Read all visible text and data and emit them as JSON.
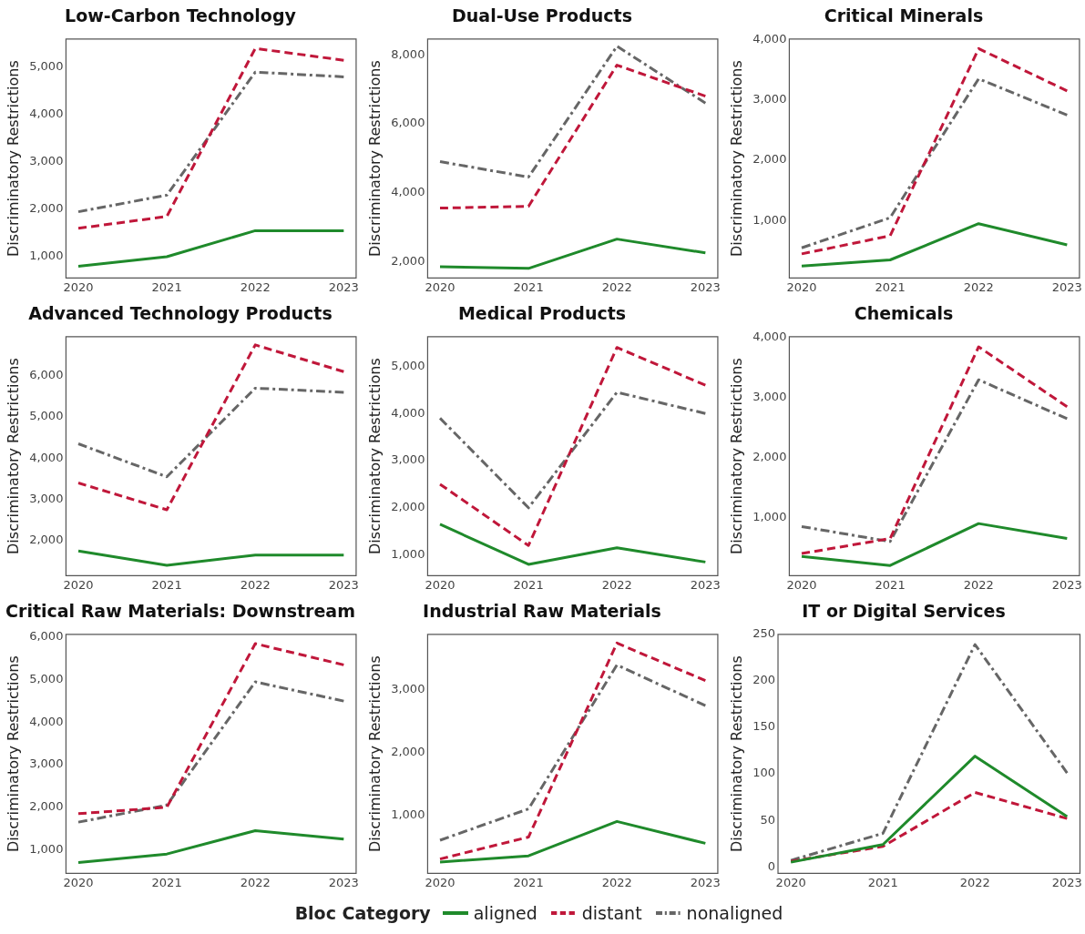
{
  "chart_data": [
    {
      "type": "line",
      "title": "Low-Carbon Technology",
      "ylabel": "Discriminatory Restrictions",
      "categories": [
        "2020",
        "2021",
        "2022",
        "2023"
      ],
      "ylim": [
        550,
        5600
      ],
      "yticks": [
        {
          "value": 1000,
          "label": "1,000"
        },
        {
          "value": 2000,
          "label": "2,000"
        },
        {
          "value": 3000,
          "label": "3,000"
        },
        {
          "value": 4000,
          "label": "4,000"
        },
        {
          "value": 5000,
          "label": "5,000"
        }
      ],
      "legend": "bottom",
      "legend_title": "Bloc Category",
      "series": [
        {
          "name": "aligned",
          "color": "#1f8a2b",
          "line_style": "solid",
          "values": [
            800,
            1000,
            1550,
            1550
          ]
        },
        {
          "name": "distant",
          "color": "#c0173a",
          "line_style": "dashed",
          "values": [
            1600,
            1850,
            5400,
            5150
          ]
        },
        {
          "name": "nonaligned",
          "color": "#666666",
          "line_style": "dashdot",
          "values": [
            1950,
            2300,
            4900,
            4800
          ]
        }
      ]
    },
    {
      "type": "line",
      "title": "Dual-Use Products",
      "ylabel": "Discriminatory Restrictions",
      "categories": [
        "2020",
        "2021",
        "2022",
        "2023"
      ],
      "ylim": [
        1520,
        8460
      ],
      "yticks": [
        {
          "value": 2000,
          "label": "2,000"
        },
        {
          "value": 4000,
          "label": "4,000"
        },
        {
          "value": 6000,
          "label": "6,000"
        },
        {
          "value": 8000,
          "label": "8,000"
        }
      ],
      "series": [
        {
          "color": "#1f8a2b",
          "line_style": "solid",
          "values": [
            1850,
            1800,
            2650,
            2250
          ]
        },
        {
          "color": "#c0173a",
          "line_style": "dashed",
          "values": [
            3550,
            3600,
            7700,
            6800
          ]
        },
        {
          "color": "#666666",
          "line_style": "dashdot",
          "values": [
            4900,
            4450,
            8250,
            6600
          ]
        }
      ]
    },
    {
      "type": "line",
      "title": "Critical Minerals",
      "ylabel": "Discriminatory Restrictions",
      "categories": [
        "2020",
        "2021",
        "2022",
        "2023"
      ],
      "ylim": [
        50,
        4010
      ],
      "yticks": [
        {
          "value": 1000,
          "label": "1,000"
        },
        {
          "value": 2000,
          "label": "2,000"
        },
        {
          "value": 3000,
          "label": "3,000"
        },
        {
          "value": 4000,
          "label": "4,000"
        }
      ],
      "series": [
        {
          "color": "#1f8a2b",
          "line_style": "solid",
          "values": [
            250,
            350,
            950,
            600
          ]
        },
        {
          "color": "#c0173a",
          "line_style": "dashed",
          "values": [
            450,
            750,
            3850,
            3150
          ]
        },
        {
          "color": "#666666",
          "line_style": "dashdot",
          "values": [
            550,
            1050,
            3350,
            2750
          ]
        }
      ]
    },
    {
      "type": "line",
      "title": "Advanced Technology Products",
      "ylabel": "Discriminatory Restrictions",
      "categories": [
        "2020",
        "2021",
        "2022",
        "2023"
      ],
      "ylim": [
        1150,
        6950
      ],
      "yticks": [
        {
          "value": 2000,
          "label": "2,000"
        },
        {
          "value": 3000,
          "label": "3,000"
        },
        {
          "value": 4000,
          "label": "4,000"
        },
        {
          "value": 5000,
          "label": "5,000"
        },
        {
          "value": 6000,
          "label": "6,000"
        }
      ],
      "series": [
        {
          "color": "#1f8a2b",
          "line_style": "solid",
          "values": [
            1750,
            1400,
            1650,
            1650
          ]
        },
        {
          "color": "#c0173a",
          "line_style": "dashed",
          "values": [
            3400,
            2750,
            6750,
            6100
          ]
        },
        {
          "color": "#666666",
          "line_style": "dashdot",
          "values": [
            4350,
            3550,
            5700,
            5600
          ]
        }
      ]
    },
    {
      "type": "line",
      "title": "Medical Products",
      "ylabel": "Discriminatory Restrictions",
      "categories": [
        "2020",
        "2021",
        "2022",
        "2023"
      ],
      "ylim": [
        560,
        5630
      ],
      "yticks": [
        {
          "value": 1000,
          "label": "1,000"
        },
        {
          "value": 2000,
          "label": "2,000"
        },
        {
          "value": 3000,
          "label": "3,000"
        },
        {
          "value": 4000,
          "label": "4,000"
        },
        {
          "value": 5000,
          "label": "5,000"
        }
      ],
      "series": [
        {
          "color": "#1f8a2b",
          "line_style": "solid",
          "values": [
            1650,
            800,
            1150,
            850
          ]
        },
        {
          "color": "#c0173a",
          "line_style": "dashed",
          "values": [
            2500,
            1200,
            5400,
            4600
          ]
        },
        {
          "color": "#666666",
          "line_style": "dashdot",
          "values": [
            3900,
            2000,
            4450,
            4000
          ]
        }
      ]
    },
    {
      "type": "line",
      "title": "Chemicals",
      "ylabel": "Discriminatory Restrictions",
      "categories": [
        "2020",
        "2021",
        "2022",
        "2023"
      ],
      "ylim": [
        30,
        4020
      ],
      "yticks": [
        {
          "value": 1000,
          "label": "1,000"
        },
        {
          "value": 2000,
          "label": "2,000"
        },
        {
          "value": 3000,
          "label": "3,000"
        },
        {
          "value": 4000,
          "label": "4,000"
        }
      ],
      "series": [
        {
          "color": "#1f8a2b",
          "line_style": "solid",
          "values": [
            350,
            200,
            900,
            650
          ]
        },
        {
          "color": "#c0173a",
          "line_style": "dashed",
          "values": [
            400,
            650,
            3850,
            2850
          ]
        },
        {
          "color": "#666666",
          "line_style": "dashdot",
          "values": [
            850,
            600,
            3300,
            2650
          ]
        }
      ]
    },
    {
      "type": "line",
      "title": "Critical Raw Materials: Downstream",
      "ylabel": "Discriminatory Restrictions",
      "categories": [
        "2020",
        "2021",
        "2022",
        "2023"
      ],
      "ylim": [
        445,
        6070
      ],
      "yticks": [
        {
          "value": 1000,
          "label": "1,000"
        },
        {
          "value": 2000,
          "label": "2,000"
        },
        {
          "value": 3000,
          "label": "3,000"
        },
        {
          "value": 4000,
          "label": "4,000"
        },
        {
          "value": 5000,
          "label": "5,000"
        },
        {
          "value": 6000,
          "label": "6,000"
        }
      ],
      "series": [
        {
          "color": "#1f8a2b",
          "line_style": "solid",
          "values": [
            700,
            900,
            1450,
            1250
          ]
        },
        {
          "color": "#c0173a",
          "line_style": "dashed",
          "values": [
            1850,
            2000,
            5850,
            5350
          ]
        },
        {
          "color": "#666666",
          "line_style": "dashdot",
          "values": [
            1650,
            2050,
            4950,
            4500
          ]
        }
      ]
    },
    {
      "type": "line",
      "title": "Industrial Raw Materials",
      "ylabel": "Discriminatory Restrictions",
      "categories": [
        "2020",
        "2021",
        "2022",
        "2023"
      ],
      "ylim": [
        70,
        3890
      ],
      "yticks": [
        {
          "value": 1000,
          "label": "1,000"
        },
        {
          "value": 2000,
          "label": "2,000"
        },
        {
          "value": 3000,
          "label": "3,000"
        }
      ],
      "series": [
        {
          "color": "#1f8a2b",
          "line_style": "solid",
          "values": [
            250,
            350,
            900,
            550
          ]
        },
        {
          "color": "#c0173a",
          "line_style": "dashed",
          "values": [
            300,
            650,
            3750,
            3150
          ]
        },
        {
          "color": "#666666",
          "line_style": "dashdot",
          "values": [
            600,
            1100,
            3400,
            2750
          ]
        }
      ]
    },
    {
      "type": "line",
      "title": "IT or Digital Services",
      "ylabel": "Discriminatory Restrictions",
      "categories": [
        "2020",
        "2021",
        "2022",
        "2023"
      ],
      "ylim": [
        -7,
        250
      ],
      "yticks": [
        0,
        50,
        100,
        150,
        200,
        250
      ],
      "series": [
        {
          "color": "#1f8a2b",
          "line_style": "solid",
          "values": [
            5,
            24,
            119,
            54
          ]
        },
        {
          "color": "#c0173a",
          "line_style": "dashed",
          "values": [
            6,
            22,
            80,
            52
          ]
        },
        {
          "color": "#666666",
          "line_style": "dashdot",
          "values": [
            7,
            36,
            239,
            101
          ]
        }
      ]
    }
  ]
}
